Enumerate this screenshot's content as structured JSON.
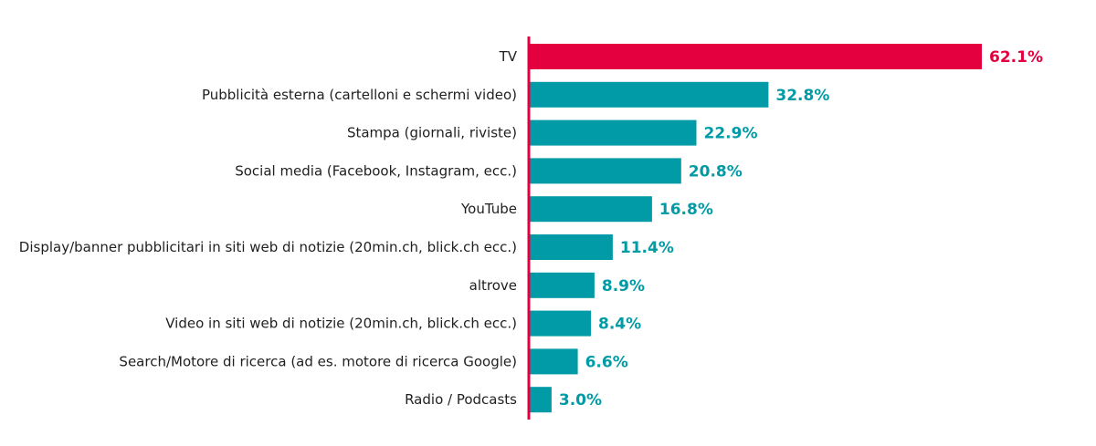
{
  "chart_data": {
    "type": "bar",
    "orientation": "horizontal",
    "title": "",
    "xlabel": "",
    "ylabel": "",
    "xlim": [
      0,
      62.1
    ],
    "grid": false,
    "legend": "none",
    "highlight_color": "#e4003e",
    "bar_color": "#009ba6",
    "axis_color": "#e4003e",
    "categories": [
      "TV",
      "Pubblicità esterna (cartelloni e schermi video)",
      "Stampa (giornali, riviste)",
      "Social media (Facebook, Instagram, ecc.)",
      "YouTube",
      "Display/banner pubblicitari in siti web di notizie (20min.ch, blick.ch ecc.)",
      "altrove",
      "Video in siti web di notizie (20min.ch, blick.ch ecc.)",
      "Search/Motore di ricerca (ad es. motore di ricerca Google)",
      "Radio / Podcasts"
    ],
    "values": [
      62.1,
      32.8,
      22.9,
      20.8,
      16.8,
      11.4,
      8.9,
      8.4,
      6.6,
      3.0
    ],
    "value_labels": [
      "62.1%",
      "32.8%",
      "22.9%",
      "20.8%",
      "16.8%",
      "11.4%",
      "8.9%",
      "8.4%",
      "6.6%",
      "3.0%"
    ],
    "highlighted_index": 0
  }
}
